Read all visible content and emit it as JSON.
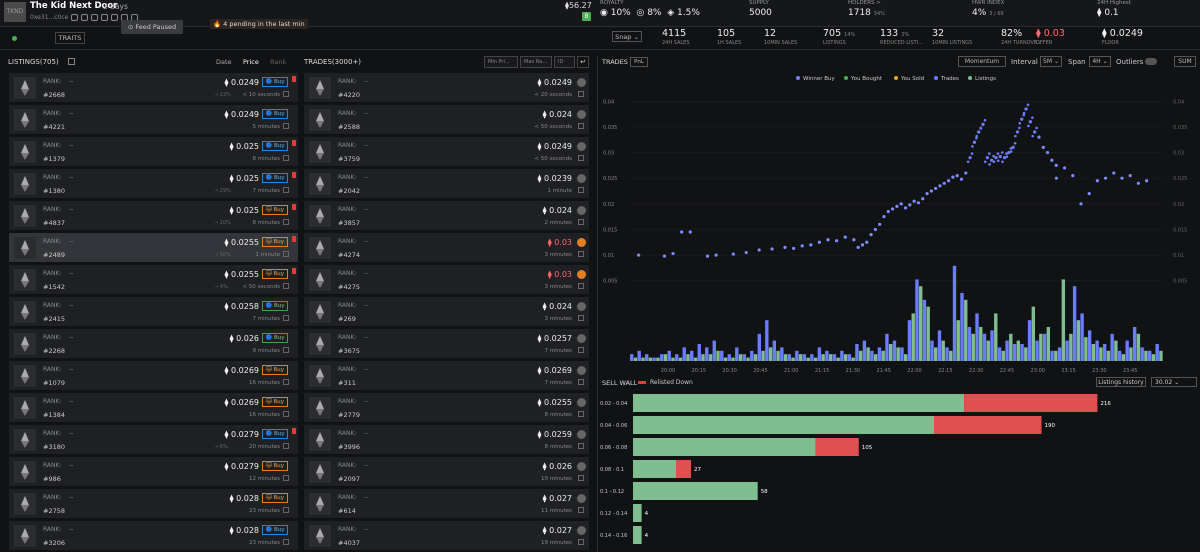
{
  "collection": {
    "name": "The Kid Next Door",
    "age": "2 days",
    "address": "0xe31...c0ce",
    "logo_text": "TKND",
    "top_stat": "56.27",
    "badge": "B"
  },
  "stats": {
    "royalty": {
      "label": "ROYALTY",
      "v1": "10%",
      "v2": "8%",
      "v3": "1.5%"
    },
    "supply": {
      "label": "SUPPLY",
      "value": "5000"
    },
    "holders": {
      "label": "HOLDERS >",
      "value": "1718",
      "pct": "34%"
    },
    "hwr": {
      "label": "HWR INDEX",
      "value": "4%",
      "sub": "3 / 69"
    },
    "high": {
      "label": "24H Highest",
      "value": "0.1"
    }
  },
  "toolbar": {
    "traits": "TRAITS",
    "feed_paused": "Feed Paused",
    "pending": "4 pending in the last min",
    "snap": "Snap"
  },
  "stats2": [
    {
      "value": "4115",
      "label": "24H SALES",
      "pct": ""
    },
    {
      "value": "105",
      "label": "1H SALES",
      "pct": ""
    },
    {
      "value": "12",
      "label": "10MIN SALES",
      "pct": ""
    },
    {
      "value": "705",
      "label": "LISTINGS",
      "pct": "14%"
    },
    {
      "value": "133",
      "label": "REDUCED LISTI...",
      "pct": "3%"
    },
    {
      "value": "32",
      "label": "10MIN LISTINGS",
      "pct": ""
    },
    {
      "value": "82%",
      "label": "24H TURNOVE...",
      "pct": ""
    },
    {
      "value": "0.03",
      "label": "OFFER",
      "pct": ""
    },
    {
      "value": "0.0249",
      "label": "FLOOR",
      "pct": ""
    }
  ],
  "listings": {
    "title": "LISTINGS(705)",
    "sort_date": "Date",
    "sort_price": "Price",
    "sort_rank": "Rank",
    "buy_label": "Buy",
    "rank_label": "RANK:",
    "rank_value": "--",
    "rows": [
      {
        "token": "#2668",
        "price": "0.0249",
        "time": "< 10 seconds",
        "pct": "23%",
        "buy": "b",
        "flag": true
      },
      {
        "token": "#4221",
        "price": "0.0249",
        "time": "5 minutes",
        "pct": "",
        "buy": "b",
        "flag": false
      },
      {
        "token": "#1379",
        "price": "0.025",
        "time": "8 minutes",
        "pct": "",
        "buy": "b",
        "flag": true
      },
      {
        "token": "#1380",
        "price": "0.025",
        "time": "7 minutes",
        "pct": "29%",
        "buy": "b",
        "flag": true
      },
      {
        "token": "#4837",
        "price": "0.025",
        "time": "8 minutes",
        "pct": "10%",
        "buy": "o",
        "flag": true
      },
      {
        "token": "#2489",
        "price": "0.0255",
        "time": "1 minute",
        "pct": "50%",
        "buy": "o",
        "flag": true
      },
      {
        "token": "#1542",
        "price": "0.0255",
        "time": "< 50 seconds",
        "pct": "4%",
        "buy": "o",
        "flag": true
      },
      {
        "token": "#2415",
        "price": "0.0258",
        "time": "7 minutes",
        "pct": "",
        "buy": "g",
        "flag": false
      },
      {
        "token": "#2268",
        "price": "0.026",
        "time": "9 minutes",
        "pct": "",
        "buy": "g",
        "flag": false
      },
      {
        "token": "#1079",
        "price": "0.0269",
        "time": "16 minutes",
        "pct": "",
        "buy": "o",
        "flag": false
      },
      {
        "token": "#1384",
        "price": "0.0269",
        "time": "16 minutes",
        "pct": "",
        "buy": "o",
        "flag": false
      },
      {
        "token": "#3180",
        "price": "0.0279",
        "time": "20 minutes",
        "pct": "8%",
        "buy": "b",
        "flag": true
      },
      {
        "token": "#986",
        "price": "0.0279",
        "time": "12 minutes",
        "pct": "",
        "buy": "o",
        "flag": false
      },
      {
        "token": "#2758",
        "price": "0.028",
        "time": "23 minutes",
        "pct": "",
        "buy": "o",
        "flag": false
      },
      {
        "token": "#3206",
        "price": "0.028",
        "time": "23 minutes",
        "pct": "",
        "buy": "b",
        "flag": false
      }
    ]
  },
  "trades": {
    "title": "TRADES(3000+)",
    "filter_min": "Min Pri...",
    "filter_max": "Max Ra...",
    "filter_id": "ID",
    "filter_btn": "↵",
    "rows": [
      {
        "token": "#4220",
        "price": "0.0249",
        "time": "< 20 seconds",
        "red": false,
        "icon": "g"
      },
      {
        "token": "#2588",
        "price": "0.024",
        "time": "< 50 seconds",
        "red": false,
        "icon": "g"
      },
      {
        "token": "#3759",
        "price": "0.0249",
        "time": "< 50 seconds",
        "red": false,
        "icon": "g"
      },
      {
        "token": "#2042",
        "price": "0.0239",
        "time": "1 minute",
        "red": false,
        "icon": "g"
      },
      {
        "token": "#3857",
        "price": "0.024",
        "time": "2 minutes",
        "red": false,
        "icon": "g"
      },
      {
        "token": "#4274",
        "price": "0.03",
        "time": "3 minutes",
        "red": true,
        "icon": "o"
      },
      {
        "token": "#4275",
        "price": "0.03",
        "time": "3 minutes",
        "red": true,
        "icon": "o"
      },
      {
        "token": "#269",
        "price": "0.024",
        "time": "3 minutes",
        "red": false,
        "icon": "g"
      },
      {
        "token": "#3675",
        "price": "0.0257",
        "time": "7 minutes",
        "red": false,
        "icon": "g"
      },
      {
        "token": "#311",
        "price": "0.0269",
        "time": "7 minutes",
        "red": false,
        "icon": "g"
      },
      {
        "token": "#2779",
        "price": "0.0255",
        "time": "8 minutes",
        "red": false,
        "icon": "g"
      },
      {
        "token": "#3996",
        "price": "0.0259",
        "time": "8 minutes",
        "red": false,
        "icon": "g"
      },
      {
        "token": "#2097",
        "price": "0.026",
        "time": "10 minutes",
        "red": false,
        "icon": "g"
      },
      {
        "token": "#614",
        "price": "0.027",
        "time": "11 minutes",
        "red": false,
        "icon": "g"
      },
      {
        "token": "#4037",
        "price": "0.027",
        "time": "19 minutes",
        "red": false,
        "icon": "g"
      }
    ]
  },
  "chart_controls": {
    "trades": "TRADES",
    "pnl": "PnL",
    "momentum": "Momentum",
    "interval_label": "Interval",
    "interval": "5M",
    "span_label": "Span",
    "span": "4H",
    "outliers": "Outliers",
    "sum": "SUM"
  },
  "chart_data": [
    {
      "type": "scatter",
      "title": "",
      "legend": [
        "Winner Buy",
        "You Bought",
        "You Sold",
        "Trades",
        "Listings"
      ],
      "legend_colors": [
        "#7c7cff",
        "#4caf50",
        "#f0a030",
        "#6b7cff",
        "#7fbf8f"
      ],
      "y_ticks": [
        "0.04",
        "0.035",
        "0.03",
        "0.025",
        "0.02",
        "0.015",
        "0.01",
        "0.005"
      ],
      "ylim": [
        0.003,
        0.042
      ],
      "x_ticks": [
        "20:00",
        "20:15",
        "20:30",
        "20:45",
        "21:00",
        "21:15",
        "21:30",
        "21:45",
        "22:00",
        "22:15",
        "22:30",
        "22:45",
        "23:00",
        "23:15",
        "23:30",
        "23:45"
      ],
      "points": [
        [
          0.02,
          0.01
        ],
        [
          0.08,
          0.0098
        ],
        [
          0.1,
          0.0103
        ],
        [
          0.12,
          0.0145
        ],
        [
          0.14,
          0.0145
        ],
        [
          0.18,
          0.0098
        ],
        [
          0.2,
          0.01
        ],
        [
          0.24,
          0.0102
        ],
        [
          0.27,
          0.0105
        ],
        [
          0.3,
          0.011
        ],
        [
          0.33,
          0.0112
        ],
        [
          0.36,
          0.0115
        ],
        [
          0.38,
          0.0113
        ],
        [
          0.4,
          0.0118
        ],
        [
          0.42,
          0.012
        ],
        [
          0.44,
          0.0125
        ],
        [
          0.46,
          0.013
        ],
        [
          0.48,
          0.0128
        ],
        [
          0.5,
          0.0135
        ],
        [
          0.52,
          0.013
        ],
        [
          0.53,
          0.0115
        ],
        [
          0.54,
          0.012
        ],
        [
          0.55,
          0.0125
        ],
        [
          0.56,
          0.014
        ],
        [
          0.57,
          0.015
        ],
        [
          0.58,
          0.016
        ],
        [
          0.59,
          0.0175
        ],
        [
          0.6,
          0.0185
        ],
        [
          0.61,
          0.019
        ],
        [
          0.62,
          0.0195
        ],
        [
          0.63,
          0.02
        ],
        [
          0.64,
          0.0192
        ],
        [
          0.65,
          0.0198
        ],
        [
          0.66,
          0.0205
        ],
        [
          0.67,
          0.0202
        ],
        [
          0.68,
          0.021
        ],
        [
          0.69,
          0.022
        ],
        [
          0.7,
          0.0225
        ],
        [
          0.71,
          0.023
        ],
        [
          0.72,
          0.0235
        ],
        [
          0.73,
          0.024
        ],
        [
          0.74,
          0.0245
        ],
        [
          0.75,
          0.0252
        ],
        [
          0.76,
          0.0255
        ],
        [
          0.77,
          0.0248
        ],
        [
          0.78,
          0.026
        ],
        [
          0.79,
          0.029
        ],
        [
          0.8,
          0.032
        ],
        [
          0.81,
          0.034
        ],
        [
          0.82,
          0.0355
        ],
        [
          0.83,
          0.029
        ],
        [
          0.84,
          0.0285
        ],
        [
          0.85,
          0.029
        ],
        [
          0.86,
          0.0292
        ],
        [
          0.87,
          0.029
        ],
        [
          0.88,
          0.03
        ],
        [
          0.89,
          0.031
        ],
        [
          0.9,
          0.034
        ],
        [
          0.91,
          0.0365
        ],
        [
          0.92,
          0.0385
        ],
        [
          0.93,
          0.036
        ],
        [
          0.94,
          0.034
        ],
        [
          0.95,
          0.033
        ],
        [
          0.96,
          0.031
        ],
        [
          0.97,
          0.03
        ],
        [
          0.98,
          0.0285
        ],
        [
          0.99,
          0.0275
        ]
      ],
      "points_b": [
        [
          1.04,
          0.025
        ],
        [
          1.06,
          0.027
        ],
        [
          1.08,
          0.0255
        ],
        [
          1.1,
          0.02
        ],
        [
          1.12,
          0.022
        ],
        [
          1.14,
          0.0245
        ],
        [
          1.16,
          0.025
        ],
        [
          1.18,
          0.026
        ],
        [
          1.2,
          0.025
        ],
        [
          1.22,
          0.0255
        ],
        [
          1.24,
          0.024
        ],
        [
          1.26,
          0.0245
        ]
      ],
      "volume_trades": [
        2,
        3,
        2,
        1,
        2,
        3,
        2,
        4,
        3,
        5,
        4,
        6,
        3,
        2,
        4,
        2,
        3,
        8,
        12,
        6,
        4,
        2,
        3,
        2,
        2,
        4,
        3,
        2,
        3,
        2,
        5,
        6,
        3,
        4,
        8,
        6,
        4,
        12,
        24,
        18,
        6,
        9,
        4,
        28,
        20,
        10,
        14,
        8,
        9,
        4,
        6,
        5,
        5,
        12,
        6,
        8,
        3,
        4,
        6,
        22,
        14,
        9,
        6,
        5,
        8,
        3,
        6,
        10,
        4,
        3,
        5
      ],
      "volume_listings": [
        1,
        1,
        1,
        1,
        2,
        1,
        1,
        2,
        1,
        2,
        2,
        3,
        1,
        1,
        2,
        1,
        2,
        3,
        4,
        3,
        2,
        1,
        2,
        1,
        1,
        2,
        2,
        1,
        2,
        1,
        3,
        4,
        2,
        3,
        5,
        4,
        2,
        14,
        22,
        16,
        4,
        6,
        3,
        12,
        18,
        8,
        10,
        6,
        14,
        3,
        8,
        6,
        4,
        16,
        8,
        10,
        3,
        24,
        8,
        12,
        7,
        5,
        4,
        3,
        6,
        2,
        4,
        8,
        3,
        2,
        3
      ]
    },
    {
      "type": "bar",
      "title": "SELL WALL",
      "orientation": "horizontal",
      "categories": [
        "0.02 - 0.04",
        "0.04 - 0.06",
        "0.06 - 0.08",
        "0.08 - 0.1",
        "0.1 - 0.12",
        "0.12 - 0.14",
        "0.14 - 0.16"
      ],
      "series": [
        {
          "name": "",
          "values": [
            154,
            140,
            85,
            20,
            58,
            4,
            4
          ]
        },
        {
          "name": "Relisted Down",
          "values": [
            62,
            50,
            20,
            7,
            0,
            0,
            0
          ]
        }
      ],
      "totals": [
        "216",
        "190",
        "105",
        "27",
        "58",
        "4",
        "4"
      ],
      "xlim": [
        0,
        250
      ]
    }
  ],
  "sellwall": {
    "title": "SELL WALL",
    "relisted": "Relisted Down",
    "history": "Listings history",
    "select": "30.02"
  }
}
